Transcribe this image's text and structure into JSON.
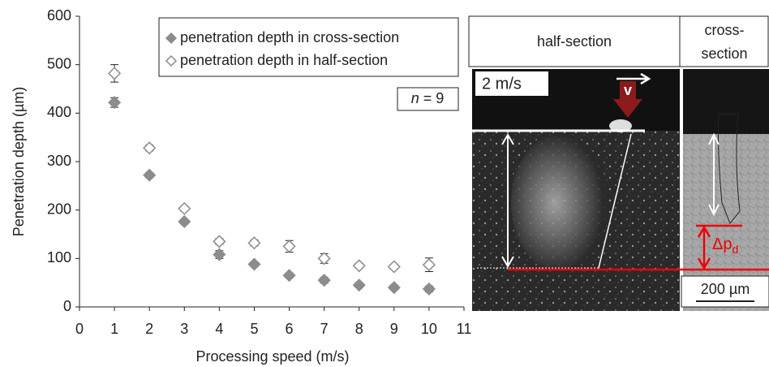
{
  "chart_data": {
    "type": "scatter",
    "xlabel": "Processing speed (m/s)",
    "ylabel": "Penetration depth (µm)",
    "xlim": [
      0,
      11
    ],
    "xticks": [
      0,
      1,
      2,
      3,
      4,
      5,
      6,
      7,
      8,
      9,
      10,
      11
    ],
    "ylim": [
      0,
      600
    ],
    "yticks": [
      0,
      100,
      200,
      300,
      400,
      500,
      600
    ],
    "grid": false,
    "legend": "upper right",
    "annotation": {
      "symbol": "n",
      "text": "= 9"
    },
    "series": [
      {
        "name": "penetration depth in cross-section",
        "color": "#8c8c8c",
        "marker": "filled",
        "x": [
          1,
          2,
          3,
          4,
          5,
          6,
          7,
          8,
          9,
          10
        ],
        "values": [
          422,
          272,
          176,
          108,
          88,
          65,
          55,
          45,
          40,
          37
        ],
        "errors": [
          10,
          5,
          5,
          8,
          5,
          5,
          6,
          5,
          5,
          6
        ]
      },
      {
        "name": "penetration depth in half-section",
        "color": "#8c8c8c",
        "marker": "open",
        "x": [
          1,
          2,
          3,
          4,
          5,
          6,
          7,
          8,
          9,
          10
        ],
        "values": [
          482,
          328,
          203,
          135,
          132,
          125,
          100,
          85,
          83,
          87
        ],
        "errors": [
          18,
          6,
          5,
          6,
          6,
          12,
          10,
          5,
          5,
          14
        ]
      }
    ]
  },
  "panel": {
    "half_title": "half-section",
    "cross_title": [
      "cross-",
      "section"
    ],
    "speed": "2 m/s",
    "velocity": "v",
    "delta": {
      "symbol": "Δp",
      "sub": "d"
    },
    "scale": "200 µm"
  }
}
